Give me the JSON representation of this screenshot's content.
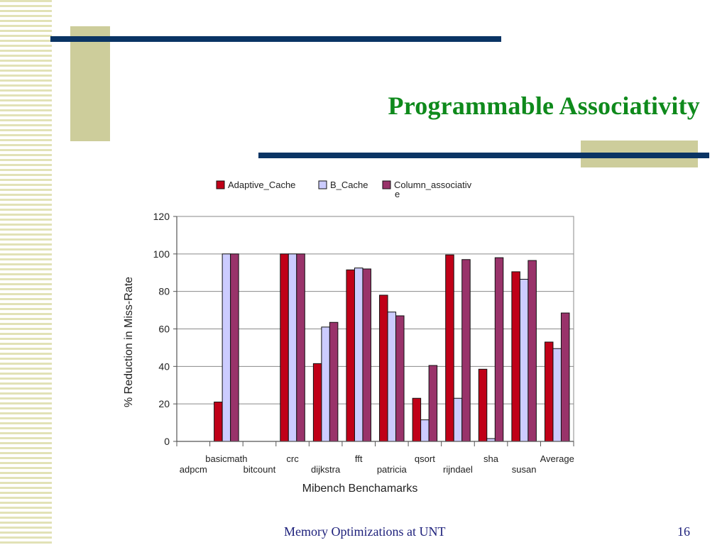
{
  "slide": {
    "title": "Programmable Associativity",
    "footer_text": "Memory Optimizations at UNT",
    "page_number": "16"
  },
  "colors": {
    "title": "#0f8a1c",
    "navy": "#0a3464",
    "tan": "#cdcd9b",
    "stripe": "#e2e2b6",
    "footer": "#1c1f7a"
  },
  "chart_data": {
    "type": "bar",
    "title": "",
    "xlabel": "Mibench Benchamarks",
    "ylabel": "% Reduction in Miss-Rate",
    "ylim": [
      0,
      120
    ],
    "yticks": [
      0,
      20,
      40,
      60,
      80,
      100,
      120
    ],
    "grid": true,
    "legend_position": "top",
    "categories": [
      "adpcm",
      "basicmath",
      "bitcount",
      "crc",
      "dijkstra",
      "fft",
      "patricia",
      "qsort",
      "rijndael",
      "sha",
      "susan",
      "Average"
    ],
    "series": [
      {
        "name": "Adaptive_Cache",
        "color": "#c00018",
        "values": [
          0,
          21,
          0,
          100,
          41.5,
          91.5,
          78,
          23,
          99.5,
          38.5,
          90.5,
          53
        ]
      },
      {
        "name": "B_Cache",
        "color": "#ccccff",
        "values": [
          0,
          100,
          0,
          100,
          61,
          92.5,
          69,
          11.5,
          23,
          1.5,
          86.5,
          49.5
        ]
      },
      {
        "name": "Column_associative",
        "color": "#99336a",
        "legend_lines": [
          "Column_associativ",
          "e"
        ],
        "values": [
          0,
          100,
          0,
          100,
          63.5,
          92,
          67,
          40.5,
          97,
          98,
          96.5,
          68.5
        ]
      }
    ]
  }
}
